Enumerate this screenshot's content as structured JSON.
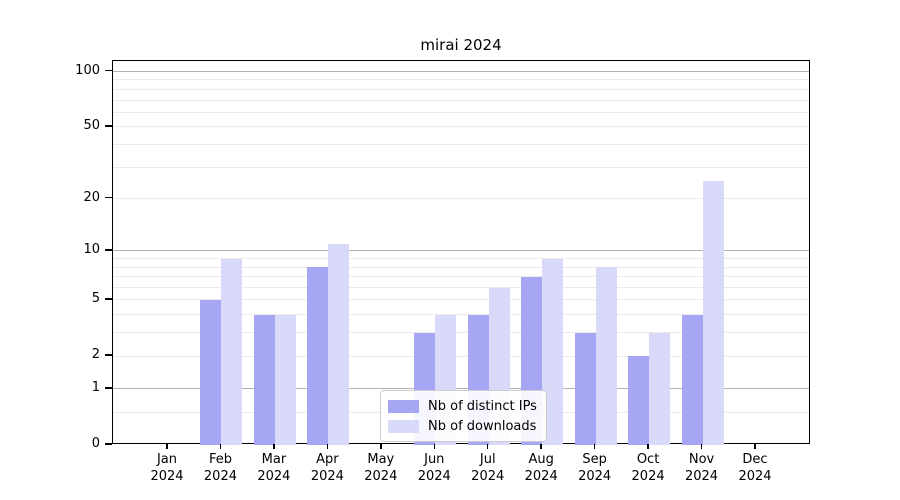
{
  "chart_data": {
    "type": "bar",
    "title": "mirai 2024",
    "categories": [
      {
        "month": "Jan",
        "year": "2024"
      },
      {
        "month": "Feb",
        "year": "2024"
      },
      {
        "month": "Mar",
        "year": "2024"
      },
      {
        "month": "Apr",
        "year": "2024"
      },
      {
        "month": "May",
        "year": "2024"
      },
      {
        "month": "Jun",
        "year": "2024"
      },
      {
        "month": "Jul",
        "year": "2024"
      },
      {
        "month": "Aug",
        "year": "2024"
      },
      {
        "month": "Sep",
        "year": "2024"
      },
      {
        "month": "Oct",
        "year": "2024"
      },
      {
        "month": "Nov",
        "year": "2024"
      },
      {
        "month": "Dec",
        "year": "2024"
      }
    ],
    "series": [
      {
        "name": "Nb of distinct IPs",
        "color": "#a6a6f4",
        "values": [
          0,
          5,
          4,
          8,
          0,
          3,
          4,
          7,
          3,
          2,
          4,
          0
        ]
      },
      {
        "name": "Nb of downloads",
        "color": "#d9d9fa",
        "values": [
          0,
          9,
          4,
          11,
          0,
          4,
          6,
          9,
          8,
          3,
          25,
          0
        ]
      }
    ],
    "xlabel": "",
    "ylabel": "",
    "yscale": "log1p",
    "ylim": [
      0,
      114
    ],
    "yticks": [
      0,
      1,
      2,
      5,
      10,
      20,
      50,
      100
    ],
    "major_gridlines": [
      1,
      10,
      100
    ],
    "minor_gridlines": [
      0.5,
      2,
      3,
      4,
      5,
      6,
      7,
      8,
      9,
      20,
      30,
      40,
      50,
      60,
      70,
      80,
      90
    ],
    "grid": true,
    "legend_position": "lower center"
  },
  "colors": {
    "background": "#ffffff",
    "spine": "#000000",
    "major_grid": "#b0b0b0",
    "minor_grid": "#ebebeb",
    "legend_border": "#cccccc"
  }
}
